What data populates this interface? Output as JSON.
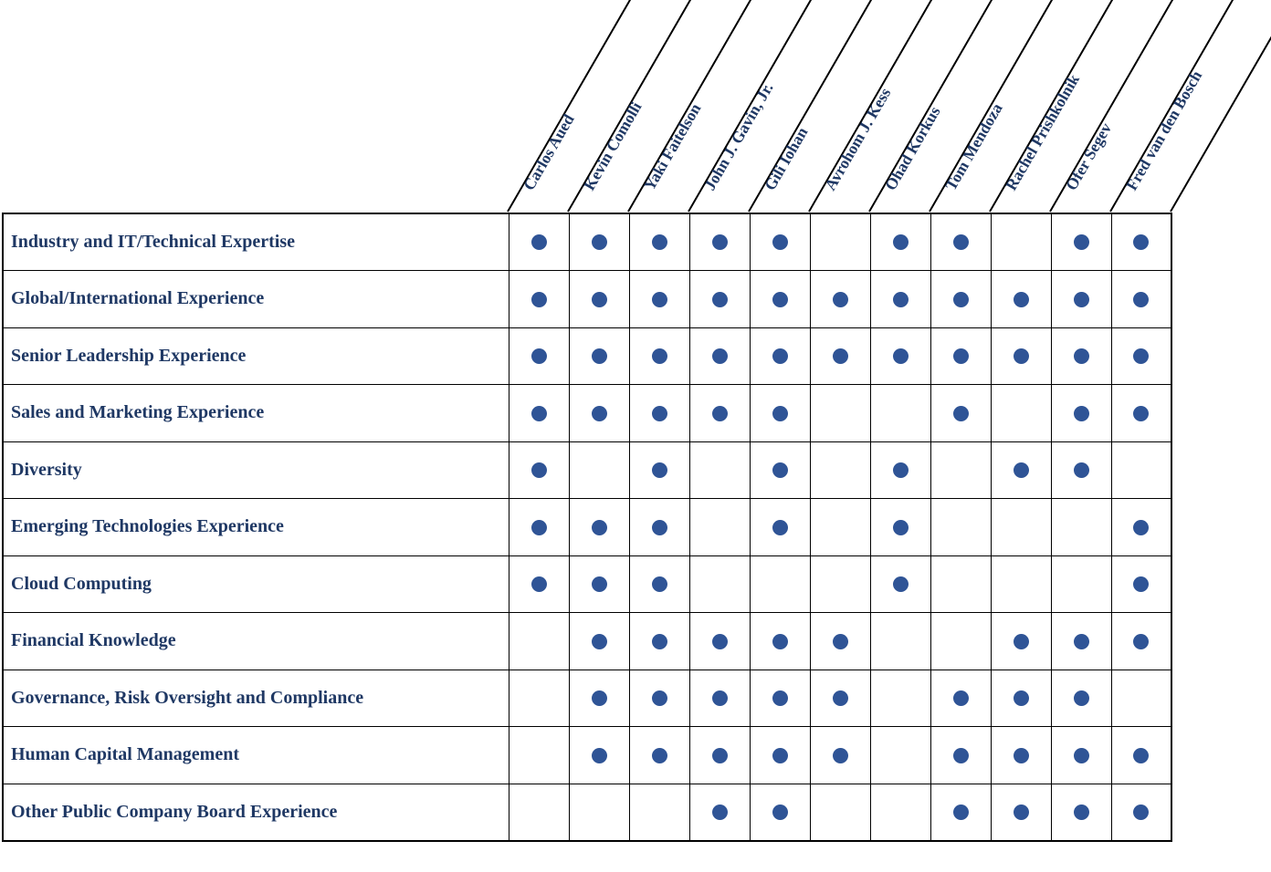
{
  "matrix": {
    "columns": [
      "Carlos Aued",
      "Kevin Comolli",
      "Yaki Faitelson",
      "John J. Gavin, Jr.",
      "Gili Iohan",
      "Avrohom J. Kess",
      "Ohad Korkus",
      "Tom Mendoza",
      "Rachel Prishkolnik",
      "Ofer Segev",
      "Fred van den Bosch"
    ],
    "rows": [
      {
        "label": "Industry and IT/Technical Expertise",
        "dots": [
          1,
          1,
          1,
          1,
          1,
          0,
          1,
          1,
          0,
          1,
          1
        ]
      },
      {
        "label": "Global/International Experience",
        "dots": [
          1,
          1,
          1,
          1,
          1,
          1,
          1,
          1,
          1,
          1,
          1
        ]
      },
      {
        "label": "Senior Leadership Experience",
        "dots": [
          1,
          1,
          1,
          1,
          1,
          1,
          1,
          1,
          1,
          1,
          1
        ]
      },
      {
        "label": "Sales and Marketing Experience",
        "dots": [
          1,
          1,
          1,
          1,
          1,
          0,
          0,
          1,
          0,
          1,
          1
        ]
      },
      {
        "label": "Diversity",
        "dots": [
          1,
          0,
          1,
          0,
          1,
          0,
          1,
          0,
          1,
          1,
          0
        ]
      },
      {
        "label": "Emerging Technologies Experience",
        "dots": [
          1,
          1,
          1,
          0,
          1,
          0,
          1,
          0,
          0,
          0,
          1
        ]
      },
      {
        "label": "Cloud Computing",
        "dots": [
          1,
          1,
          1,
          0,
          0,
          0,
          1,
          0,
          0,
          0,
          1
        ]
      },
      {
        "label": "Financial Knowledge",
        "dots": [
          0,
          1,
          1,
          1,
          1,
          1,
          0,
          0,
          1,
          1,
          1
        ]
      },
      {
        "label": "Governance, Risk Oversight and Compliance",
        "dots": [
          0,
          1,
          1,
          1,
          1,
          1,
          0,
          1,
          1,
          1,
          0
        ]
      },
      {
        "label": "Human Capital Management",
        "dots": [
          0,
          1,
          1,
          1,
          1,
          1,
          0,
          1,
          1,
          1,
          1
        ]
      },
      {
        "label": "Other Public Company Board Experience",
        "dots": [
          0,
          0,
          0,
          1,
          1,
          0,
          0,
          1,
          1,
          1,
          1
        ]
      }
    ],
    "colors": {
      "text": "#1F3864",
      "dot": "#2F5496",
      "border": "#000000"
    }
  }
}
